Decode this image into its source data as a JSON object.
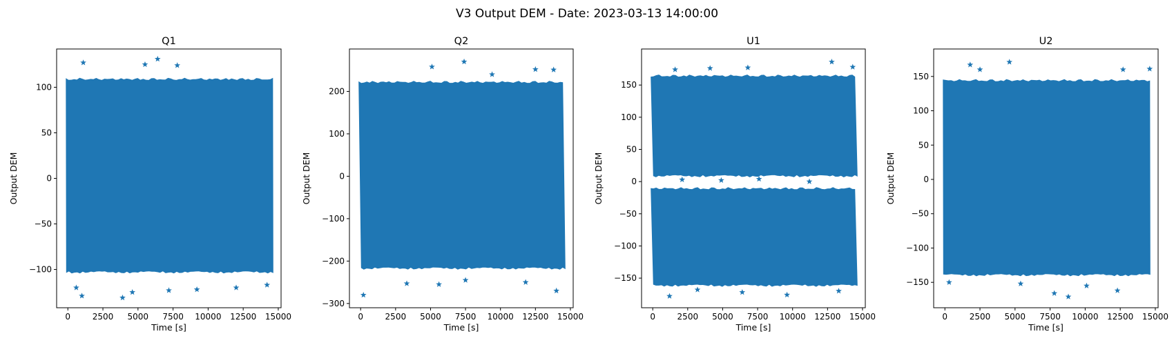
{
  "figure": {
    "suptitle": "V3 Output DEM - Date: 2023-03-13 14:00:00"
  },
  "style": {
    "marker_color": "#1f77b4",
    "axis_color": "#000000",
    "marker": "star"
  },
  "chart_data": [
    {
      "type": "scatter",
      "title": "Q1",
      "xlabel": "Time [s]",
      "ylabel": "Output DEM",
      "xlim": [
        -800,
        15200
      ],
      "ylim": [
        -142,
        142
      ],
      "xticks": [
        0,
        2500,
        5000,
        7500,
        10000,
        12500,
        15000
      ],
      "yticks": [
        -100,
        -50,
        0,
        50,
        100
      ],
      "grid": false,
      "x_range": [
        0,
        14500
      ],
      "bands": [
        {
          "y_low": -102,
          "y_high": 108
        }
      ],
      "outliers": [
        {
          "x": 1100,
          "y": 127
        },
        {
          "x": 6400,
          "y": 131
        },
        {
          "x": 7800,
          "y": 124
        },
        {
          "x": 5500,
          "y": 125
        },
        {
          "x": 3900,
          "y": -131
        },
        {
          "x": 1000,
          "y": -129
        },
        {
          "x": 4600,
          "y": -125
        },
        {
          "x": 9200,
          "y": -122
        },
        {
          "x": 12000,
          "y": -120
        },
        {
          "x": 14200,
          "y": -117
        },
        {
          "x": 7200,
          "y": -123
        },
        {
          "x": 600,
          "y": -120
        }
      ]
    },
    {
      "type": "scatter",
      "title": "Q2",
      "xlabel": "Time [s]",
      "ylabel": "Output DEM",
      "xlim": [
        -800,
        15200
      ],
      "ylim": [
        -310,
        300
      ],
      "xticks": [
        0,
        2500,
        5000,
        7500,
        10000,
        12500,
        15000
      ],
      "yticks": [
        -300,
        -200,
        -100,
        0,
        100,
        200
      ],
      "grid": false,
      "x_range": [
        0,
        14500
      ],
      "bands": [
        {
          "y_low": -215,
          "y_high": 220
        }
      ],
      "outliers": [
        {
          "x": 7400,
          "y": 270
        },
        {
          "x": 5100,
          "y": 258
        },
        {
          "x": 12500,
          "y": 252
        },
        {
          "x": 13800,
          "y": 251
        },
        {
          "x": 9400,
          "y": 240
        },
        {
          "x": 200,
          "y": -280
        },
        {
          "x": 14000,
          "y": -270
        },
        {
          "x": 3300,
          "y": -253
        },
        {
          "x": 5600,
          "y": -255
        },
        {
          "x": 11800,
          "y": -250
        },
        {
          "x": 7500,
          "y": -245
        }
      ]
    },
    {
      "type": "scatter",
      "title": "U1",
      "xlabel": "Time [s]",
      "ylabel": "Output DEM",
      "xlim": [
        -800,
        15200
      ],
      "ylim": [
        -196,
        206
      ],
      "xticks": [
        0,
        2500,
        5000,
        7500,
        10000,
        12500,
        15000
      ],
      "yticks": [
        -150,
        -100,
        -50,
        0,
        50,
        100,
        150
      ],
      "grid": false,
      "x_range": [
        0,
        14500
      ],
      "bands": [
        {
          "y_low": 10,
          "y_high": 163
        },
        {
          "y_low": -160,
          "y_high": -12
        }
      ],
      "outliers": [
        {
          "x": 12800,
          "y": 186
        },
        {
          "x": 14300,
          "y": 178
        },
        {
          "x": 4100,
          "y": 176
        },
        {
          "x": 1600,
          "y": 174
        },
        {
          "x": 6800,
          "y": 177
        },
        {
          "x": 1200,
          "y": -178
        },
        {
          "x": 9600,
          "y": -176
        },
        {
          "x": 6400,
          "y": -172
        },
        {
          "x": 13300,
          "y": -170
        },
        {
          "x": 3200,
          "y": -168
        },
        {
          "x": 2100,
          "y": 3
        },
        {
          "x": 7600,
          "y": 4
        },
        {
          "x": 11200,
          "y": 0
        },
        {
          "x": 4900,
          "y": 2
        }
      ]
    },
    {
      "type": "scatter",
      "title": "U2",
      "xlabel": "Time [s]",
      "ylabel": "Output DEM",
      "xlim": [
        -800,
        15200
      ],
      "ylim": [
        -187,
        190
      ],
      "xticks": [
        0,
        2500,
        5000,
        7500,
        10000,
        12500,
        15000
      ],
      "yticks": [
        -150,
        -100,
        -50,
        0,
        50,
        100,
        150
      ],
      "grid": false,
      "x_range": [
        0,
        14500
      ],
      "bands": [
        {
          "y_low": -138,
          "y_high": 143
        }
      ],
      "outliers": [
        {
          "x": 4600,
          "y": 171
        },
        {
          "x": 1800,
          "y": 167
        },
        {
          "x": 14600,
          "y": 161
        },
        {
          "x": 2500,
          "y": 160
        },
        {
          "x": 12700,
          "y": 160
        },
        {
          "x": 8800,
          "y": -171
        },
        {
          "x": 7800,
          "y": -166
        },
        {
          "x": 12300,
          "y": -162
        },
        {
          "x": 300,
          "y": -150
        },
        {
          "x": 10100,
          "y": -155
        },
        {
          "x": 5400,
          "y": -152
        }
      ]
    }
  ]
}
